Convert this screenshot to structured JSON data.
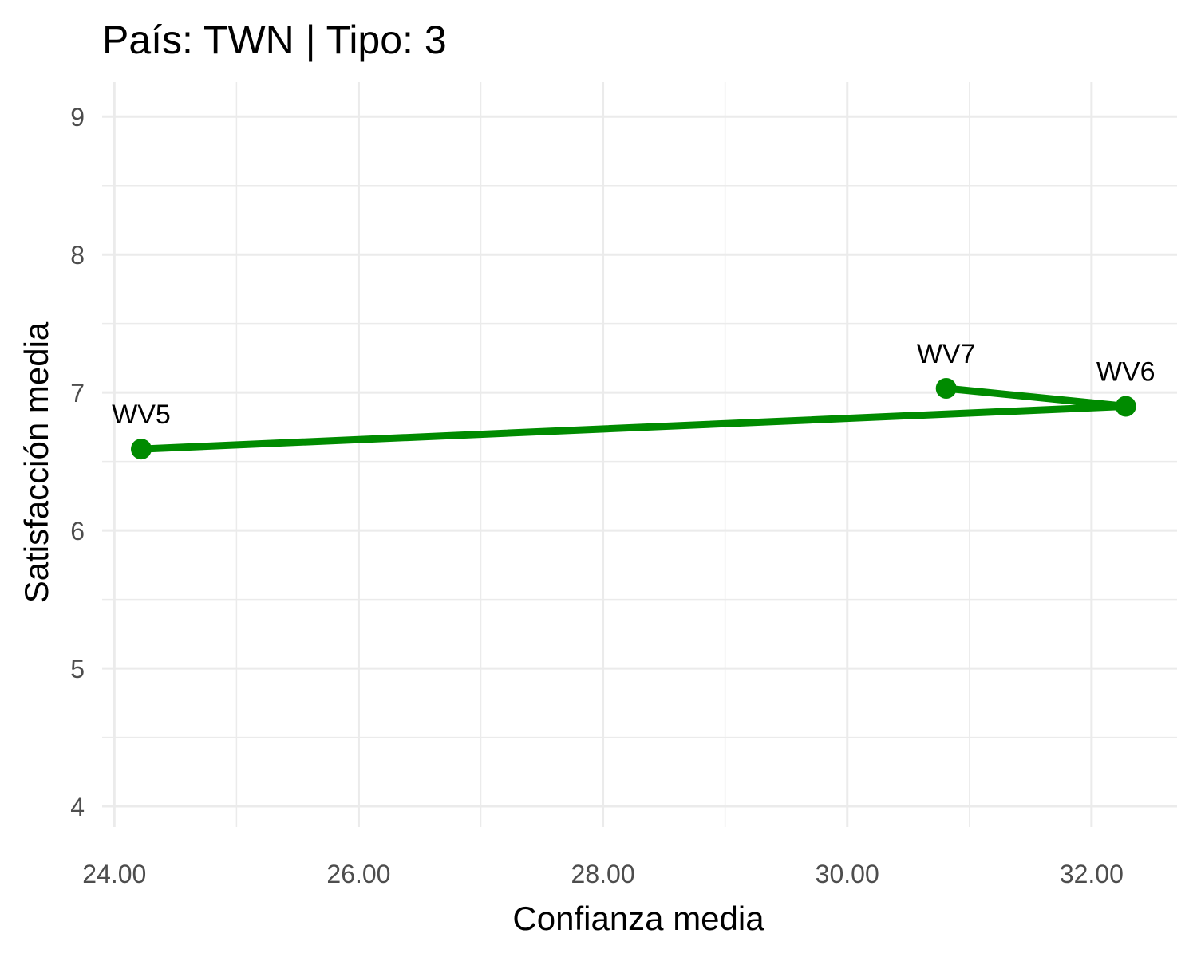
{
  "chart_data": {
    "type": "line",
    "title": "País: TWN | Tipo: 3",
    "xlabel": "Confianza media",
    "ylabel": "Satisfacción media",
    "xlim": [
      23.9,
      32.7
    ],
    "ylim": [
      3.85,
      9.25
    ],
    "x_ticks": [
      24,
      26,
      28,
      30,
      32
    ],
    "x_tick_labels": [
      "24.00",
      "26.00",
      "28.00",
      "30.00",
      "32.00"
    ],
    "y_ticks": [
      4,
      5,
      6,
      7,
      8,
      9
    ],
    "y_tick_labels": [
      "4",
      "5",
      "6",
      "7",
      "8",
      "9"
    ],
    "grid": true,
    "series": [
      {
        "color": "#008b00",
        "points": [
          {
            "label": "WV5",
            "x": 24.22,
            "y": 6.59
          },
          {
            "label": "WV6",
            "x": 32.28,
            "y": 6.9
          },
          {
            "label": "WV7",
            "x": 30.81,
            "y": 7.03
          }
        ]
      }
    ]
  }
}
